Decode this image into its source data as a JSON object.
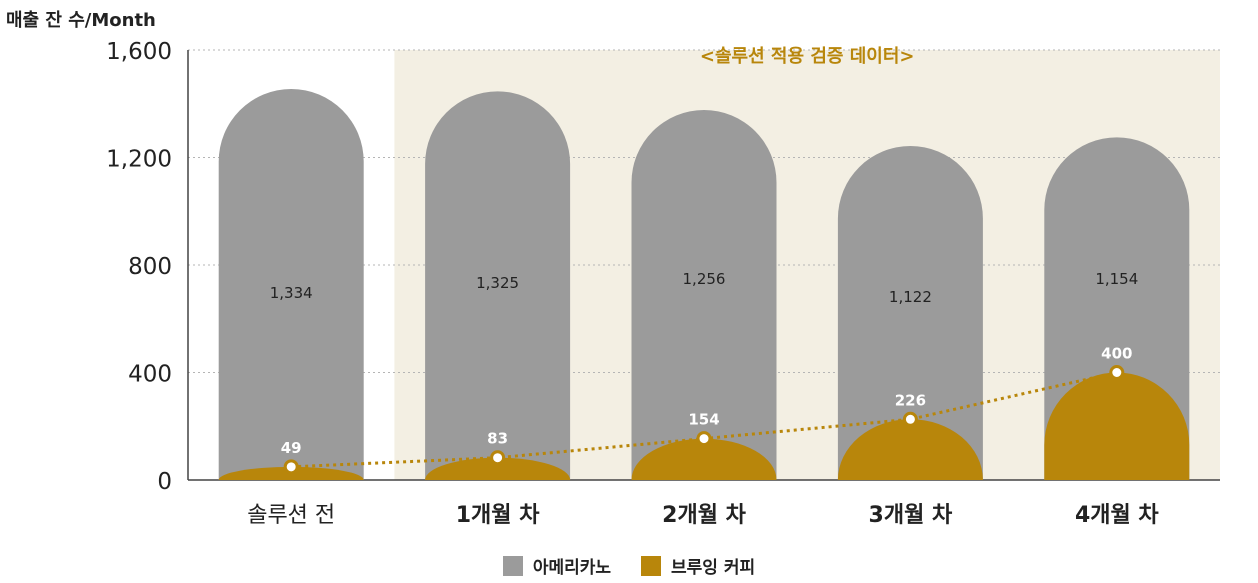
{
  "chart_data": {
    "type": "bar",
    "ylabel": "매출 잔 수/Month",
    "ylim": [
      0,
      1600
    ],
    "yticks": [
      "0",
      "400",
      "800",
      "1,200",
      "1,600"
    ],
    "categories": [
      "솔루션 전",
      "1개월 차",
      "2개월 차",
      "3개월 차",
      "4개월 차"
    ],
    "annotation": "<솔루션 적용 검증 데이터>",
    "grid": true,
    "legend_position": "bottom-center",
    "series": [
      {
        "name": "아메리카노",
        "type": "bar",
        "values": [
          1334,
          1325,
          1256,
          1122,
          1154
        ],
        "labels": [
          "1,334",
          "1,325",
          "1,256",
          "1,122",
          "1,154"
        ]
      },
      {
        "name": "브루잉 커피",
        "type": "line",
        "values": [
          49,
          83,
          154,
          226,
          400
        ],
        "labels": [
          "49",
          "83",
          "154",
          "226",
          "400"
        ]
      }
    ]
  },
  "colors": {
    "americano": "#9b9b9b",
    "brewing": "#b8860b",
    "highlight_bg": "#f3efe3",
    "annotation": "#b8860b"
  }
}
